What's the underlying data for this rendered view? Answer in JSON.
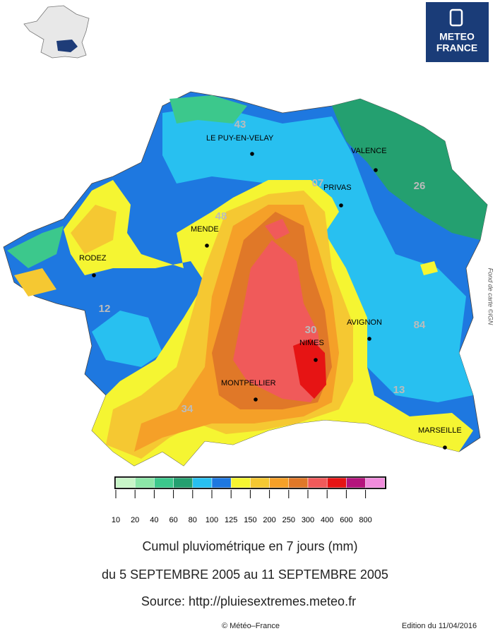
{
  "logo": {
    "line1": "METEO",
    "line2": "FRANCE"
  },
  "cities": [
    "LE PUY-EN-VELAY",
    "VALENCE",
    "PRIVAS",
    "MENDE",
    "RODEZ",
    "AVIGNON",
    "NIMES",
    "MONTPELLIER",
    "MARSEILLE"
  ],
  "departments": [
    "43",
    "07",
    "26",
    "48",
    "12",
    "30",
    "84",
    "13",
    "34"
  ],
  "credit_side": "Fond de carte ©IGN",
  "legend": {
    "colors": [
      "#c8f5c8",
      "#8ce6a8",
      "#3cc88c",
      "#24a070",
      "#28c0f0",
      "#1e78e0",
      "#f5f532",
      "#f5c832",
      "#f5a028",
      "#e07828",
      "#f05a5a",
      "#e61414",
      "#b4147c",
      "#f08cdc"
    ],
    "ticks": [
      10,
      20,
      40,
      60,
      80,
      100,
      125,
      150,
      200,
      250,
      300,
      400,
      600,
      800
    ]
  },
  "title": "Cumul pluviométrique en 7 jours (mm)",
  "subtitle": "du 5 SEPTEMBRE 2005 au 11 SEPTEMBRE 2005",
  "source": "Source: http://pluiesextremes.meteo.fr",
  "copyright": "© Météo–France",
  "edition": "Edition du 11/04/2016"
}
